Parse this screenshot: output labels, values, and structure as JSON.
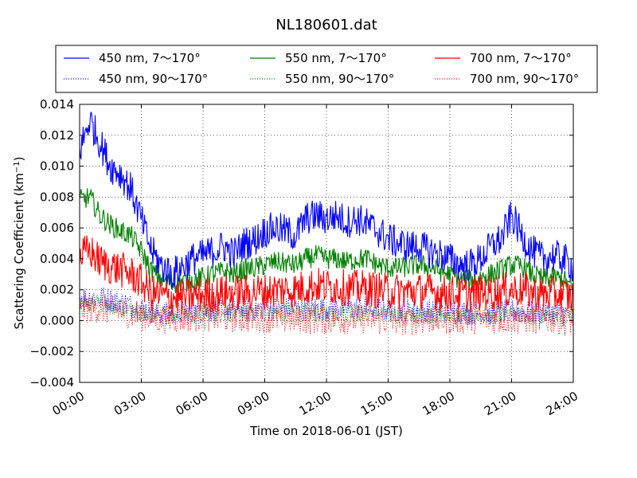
{
  "chart_data": {
    "type": "line",
    "title": "NL180601.dat",
    "xlabel": "Time on 2018-06-01 (JST)",
    "ylabel_main": "Scattering Coefficient (km",
    "ylabel_exp": "−1",
    "ylabel_close": ")",
    "x_ticks": [
      "00:00",
      "03:00",
      "06:00",
      "09:00",
      "12:00",
      "15:00",
      "18:00",
      "21:00",
      "24:00"
    ],
    "x_range_hours": [
      0,
      24
    ],
    "y_ticks": [
      "−0.004",
      "−0.002",
      "0.000",
      "0.002",
      "0.004",
      "0.006",
      "0.008",
      "0.010",
      "0.012",
      "0.014"
    ],
    "ylim": [
      -0.004,
      0.014
    ],
    "grid": true,
    "legend_placement": "top, above plot",
    "colors": {
      "blue": "#0000ff",
      "green": "#008000",
      "red": "#ff0000"
    },
    "series": [
      {
        "name": "450 nm, 7～170°",
        "color": "#0000ff",
        "style": "solid",
        "x": [
          0,
          0.5,
          1,
          1.5,
          2,
          2.5,
          3,
          3.5,
          4,
          4.5,
          5,
          5.5,
          6,
          6.5,
          7,
          7.5,
          8,
          8.5,
          9,
          9.5,
          10,
          10.5,
          11,
          11.5,
          12,
          12.5,
          13,
          13.5,
          14,
          14.5,
          15,
          15.5,
          16,
          16.5,
          17,
          17.5,
          18,
          18.5,
          19,
          19.5,
          20,
          20.5,
          21,
          21.5,
          22,
          22.5,
          23,
          23.5,
          24
        ],
        "y": [
          0.011,
          0.013,
          0.0115,
          0.01,
          0.0095,
          0.0085,
          0.0065,
          0.0045,
          0.0035,
          0.003,
          0.0035,
          0.004,
          0.0042,
          0.0045,
          0.0048,
          0.0043,
          0.005,
          0.0052,
          0.0058,
          0.006,
          0.0058,
          0.0055,
          0.0066,
          0.0068,
          0.0066,
          0.0068,
          0.0064,
          0.0066,
          0.0062,
          0.0058,
          0.0053,
          0.005,
          0.0048,
          0.0048,
          0.0045,
          0.0043,
          0.004,
          0.0036,
          0.0036,
          0.004,
          0.0048,
          0.0053,
          0.0068,
          0.0055,
          0.0045,
          0.004,
          0.0042,
          0.004,
          0.0035
        ]
      },
      {
        "name": "450 nm, 90～170°",
        "color": "#0000ff",
        "style": "dotted",
        "x": [
          0,
          1,
          2,
          3,
          4,
          5,
          6,
          7,
          8,
          9,
          10,
          11,
          12,
          13,
          14,
          15,
          16,
          17,
          18,
          19,
          20,
          21,
          22,
          23,
          24
        ],
        "y": [
          0.0015,
          0.0015,
          0.0012,
          0.0008,
          0.0004,
          0.0005,
          0.0006,
          0.0007,
          0.0007,
          0.0008,
          0.0008,
          0.0008,
          0.0008,
          0.0008,
          0.0008,
          0.0007,
          0.0007,
          0.0006,
          0.0006,
          0.0005,
          0.0005,
          0.0006,
          0.0005,
          0.0005,
          0.0003
        ]
      },
      {
        "name": "550 nm, 7～170°",
        "color": "#008000",
        "style": "solid",
        "x": [
          0,
          0.5,
          1,
          1.5,
          2,
          2.5,
          3,
          3.5,
          4,
          4.5,
          5,
          5.5,
          6,
          6.5,
          7,
          7.5,
          8,
          8.5,
          9,
          9.5,
          10,
          10.5,
          11,
          11.5,
          12,
          12.5,
          13,
          13.5,
          14,
          14.5,
          15,
          15.5,
          16,
          16.5,
          17,
          17.5,
          18,
          18.5,
          19,
          19.5,
          20,
          20.5,
          21,
          21.5,
          22,
          22.5,
          23,
          23.5,
          24
        ],
        "y": [
          0.0078,
          0.008,
          0.0068,
          0.0062,
          0.0058,
          0.0055,
          0.0045,
          0.0032,
          0.0027,
          0.0024,
          0.0025,
          0.0026,
          0.0028,
          0.003,
          0.0032,
          0.003,
          0.0033,
          0.0034,
          0.0036,
          0.0038,
          0.0037,
          0.0036,
          0.004,
          0.0042,
          0.004,
          0.004,
          0.0038,
          0.004,
          0.004,
          0.0036,
          0.0034,
          0.0034,
          0.0035,
          0.0036,
          0.0035,
          0.0032,
          0.003,
          0.0027,
          0.0026,
          0.0028,
          0.003,
          0.0033,
          0.0036,
          0.0035,
          0.003,
          0.0027,
          0.0028,
          0.0027,
          0.002
        ]
      },
      {
        "name": "550 nm, 90～170°",
        "color": "#008000",
        "style": "dotted",
        "x": [
          0,
          1,
          2,
          3,
          4,
          5,
          6,
          7,
          8,
          9,
          10,
          11,
          12,
          13,
          14,
          15,
          16,
          17,
          18,
          19,
          20,
          21,
          22,
          23,
          24
        ],
        "y": [
          0.001,
          0.001,
          0.0008,
          0.0005,
          0.0003,
          0.0004,
          0.0005,
          0.0005,
          0.0005,
          0.0005,
          0.0005,
          0.0005,
          0.0005,
          0.0005,
          0.0005,
          0.0004,
          0.0004,
          0.0004,
          0.0004,
          0.0003,
          0.0003,
          0.0004,
          0.0003,
          0.0003,
          0.0002
        ]
      },
      {
        "name": "700 nm, 7～170°",
        "color": "#ff0000",
        "style": "solid",
        "x": [
          0,
          0.5,
          1,
          1.5,
          2,
          2.5,
          3,
          3.5,
          4,
          4.5,
          5,
          5.5,
          6,
          6.5,
          7,
          7.5,
          8,
          8.5,
          9,
          9.5,
          10,
          10.5,
          11,
          11.5,
          12,
          12.5,
          13,
          13.5,
          14,
          14.5,
          15,
          15.5,
          16,
          16.5,
          17,
          17.5,
          18,
          18.5,
          19,
          19.5,
          20,
          20.5,
          21,
          21.5,
          22,
          22.5,
          23,
          23.5,
          24
        ],
        "y": [
          0.0042,
          0.0045,
          0.0038,
          0.0035,
          0.0033,
          0.003,
          0.0025,
          0.0018,
          0.0016,
          0.0015,
          0.0015,
          0.0016,
          0.0017,
          0.0017,
          0.0018,
          0.0018,
          0.0018,
          0.0019,
          0.0019,
          0.002,
          0.002,
          0.002,
          0.0022,
          0.0023,
          0.0022,
          0.0022,
          0.0021,
          0.0021,
          0.0021,
          0.002,
          0.0019,
          0.0019,
          0.0019,
          0.0019,
          0.0019,
          0.0018,
          0.0018,
          0.0017,
          0.0017,
          0.0018,
          0.0018,
          0.0019,
          0.002,
          0.002,
          0.0018,
          0.0017,
          0.0017,
          0.0017,
          0.0015
        ]
      },
      {
        "name": "700 nm, 90～170°",
        "color": "#ff0000",
        "style": "dotted",
        "x": [
          0,
          1,
          2,
          3,
          4,
          5,
          6,
          7,
          8,
          9,
          10,
          11,
          12,
          13,
          14,
          15,
          16,
          17,
          18,
          19,
          20,
          21,
          22,
          23,
          24
        ],
        "y": [
          0.0008,
          0.0008,
          0.0006,
          0.0003,
          0.0001,
          0.0002,
          0.0003,
          0.0002,
          0.0002,
          0.0002,
          0.0001,
          0.0001,
          0.0001,
          0.0001,
          0.0001,
          0.0,
          0.0,
          0.0001,
          0.0001,
          0.0001,
          0.0001,
          0.0001,
          0.0001,
          0.0001,
          0.0
        ]
      }
    ]
  }
}
